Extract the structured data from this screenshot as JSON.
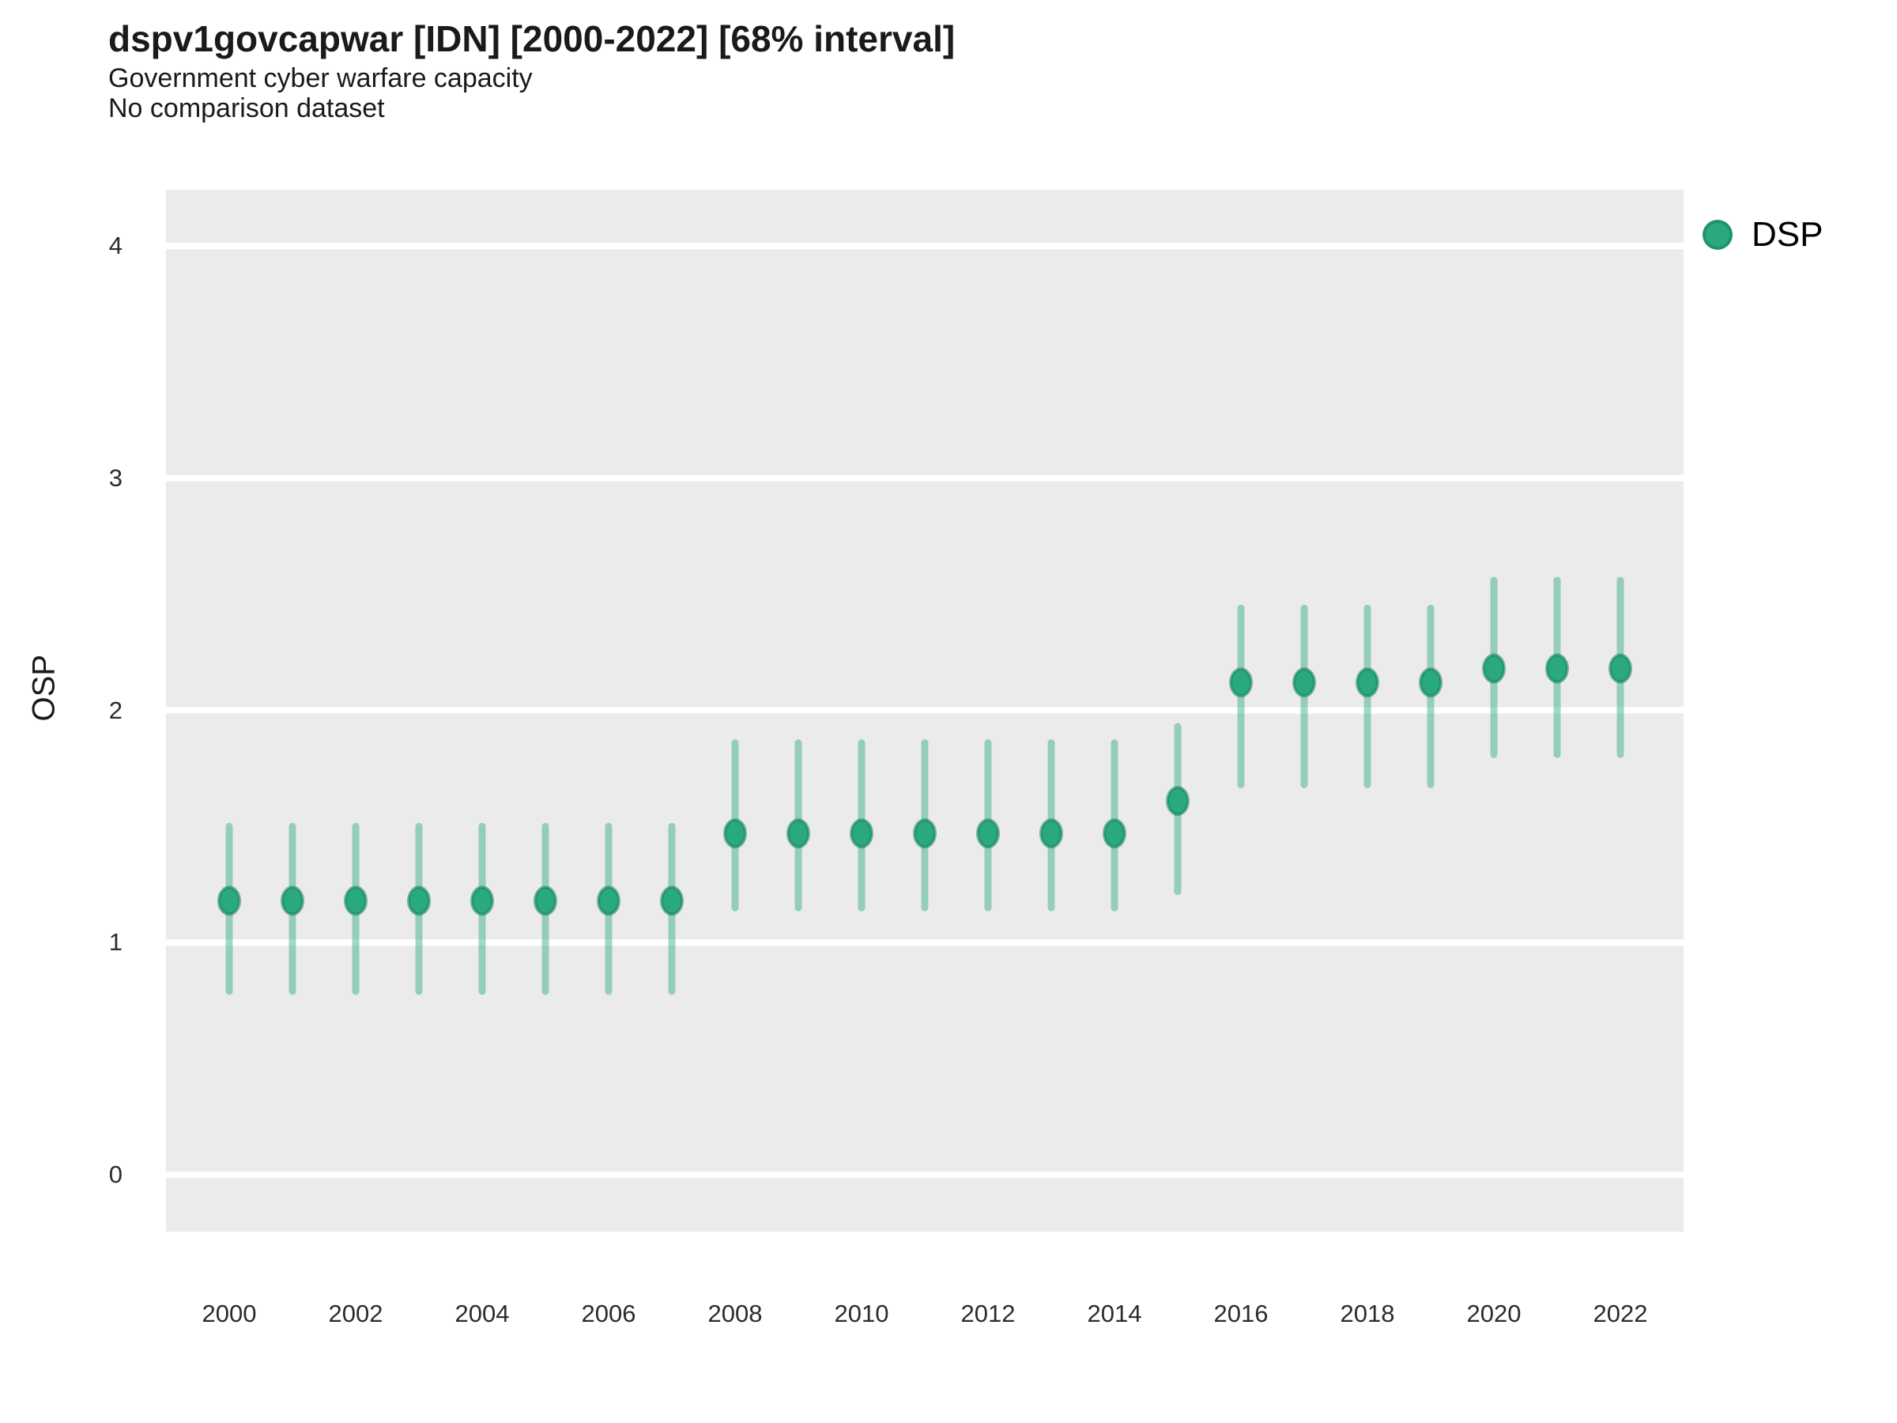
{
  "header": {
    "title": "dspv1govcapwar [IDN] [2000-2022] [68% interval]",
    "subtitle": "Government cyber warfare capacity",
    "note": "No comparison dataset"
  },
  "axes": {
    "y_label": "OSP"
  },
  "legend": {
    "label": "DSP"
  },
  "colors": {
    "panel_bg": "#ebebeb",
    "gridline": "#ffffff",
    "point_fill": "#2aa87e",
    "point_stroke": "rgba(20,130,92,0.55)",
    "interval": "rgba(42,168,126,0.45)"
  },
  "chart_data": {
    "type": "scatter",
    "title": "dspv1govcapwar [IDN] [2000-2022] [68% interval]",
    "subtitle": "Government cyber warfare capacity",
    "note": "No comparison dataset",
    "xlabel": "",
    "ylabel": "OSP",
    "legend_position": "right",
    "grid": "horizontal-only",
    "interval_level": "68%",
    "xlim": [
      1999,
      2023
    ],
    "ylim": [
      -0.245,
      4.242
    ],
    "x_ticks": [
      2000,
      2002,
      2004,
      2006,
      2008,
      2010,
      2012,
      2014,
      2016,
      2018,
      2020,
      2022
    ],
    "y_ticks": [
      0,
      1,
      2,
      3,
      4
    ],
    "series": [
      {
        "name": "DSP",
        "x": [
          2000,
          2001,
          2002,
          2003,
          2004,
          2005,
          2006,
          2007,
          2008,
          2009,
          2010,
          2011,
          2012,
          2013,
          2014,
          2015,
          2016,
          2017,
          2018,
          2019,
          2020,
          2021,
          2022
        ],
        "est": [
          1.18,
          1.18,
          1.18,
          1.18,
          1.18,
          1.18,
          1.18,
          1.18,
          1.47,
          1.47,
          1.47,
          1.47,
          1.47,
          1.47,
          1.47,
          1.61,
          2.12,
          2.12,
          2.12,
          2.12,
          2.18,
          2.18,
          2.18
        ],
        "lo": [
          0.79,
          0.79,
          0.79,
          0.79,
          0.79,
          0.79,
          0.79,
          0.79,
          1.15,
          1.15,
          1.15,
          1.15,
          1.15,
          1.15,
          1.15,
          1.22,
          1.68,
          1.68,
          1.68,
          1.68,
          1.81,
          1.81,
          1.81
        ],
        "hi": [
          1.5,
          1.5,
          1.5,
          1.5,
          1.5,
          1.5,
          1.5,
          1.5,
          1.86,
          1.86,
          1.86,
          1.86,
          1.86,
          1.86,
          1.86,
          1.93,
          2.44,
          2.44,
          2.44,
          2.44,
          2.56,
          2.56,
          2.56
        ]
      }
    ]
  }
}
